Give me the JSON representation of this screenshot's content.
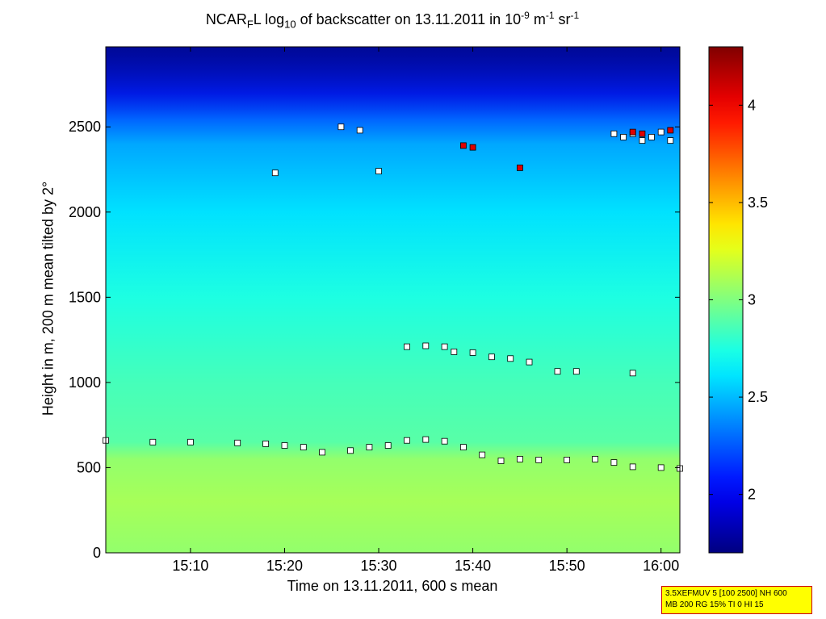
{
  "title": {
    "prefix": "NCAR",
    "sub1": "F",
    "mid1": "L log",
    "sub2": "10",
    "mid2": " of backscatter on 13.11.2011 in 10",
    "sup1": "-9",
    "mid3": " m",
    "sup2": "-1",
    "mid4": " sr",
    "sup3": "-1"
  },
  "info": {
    "line1": "3.5XEFMUV 5 [100 2500] NH 600",
    "line2": "MB 200 RG 15% TI 0 HI 15"
  },
  "colors": {
    "marker_fill": "#ffffff",
    "marker_red": "#e00000",
    "marker_edge": "#000000"
  },
  "chart_data": {
    "type": "heatmap",
    "xlabel": "Time on 13.11.2011, 600 s mean",
    "ylabel": "Height in m, 200 m mean tilted by 2°",
    "xlim": [
      "15:01",
      "16:02"
    ],
    "ylim": [
      0,
      2970
    ],
    "x_ticks": [
      "15:10",
      "15:20",
      "15:30",
      "15:40",
      "15:50",
      "16:00"
    ],
    "y_ticks": [
      0,
      500,
      1000,
      1500,
      2000,
      2500
    ],
    "colorbar": {
      "range": [
        1.7,
        4.3
      ],
      "ticks": [
        2,
        2.5,
        3,
        3.5,
        4
      ],
      "colormap": "jet"
    },
    "field_profile": [
      {
        "height": 0,
        "value": 3.05
      },
      {
        "height": 300,
        "value": 3.1
      },
      {
        "height": 550,
        "value": 3.05
      },
      {
        "height": 650,
        "value": 2.9
      },
      {
        "height": 1000,
        "value": 2.85
      },
      {
        "height": 1500,
        "value": 2.75
      },
      {
        "height": 2000,
        "value": 2.6
      },
      {
        "height": 2400,
        "value": 2.45
      },
      {
        "height": 2700,
        "value": 2.1
      },
      {
        "height": 2970,
        "value": 1.85
      }
    ],
    "series": [
      {
        "points": [
          [
            "15:01",
            660
          ],
          [
            "15:06",
            650
          ],
          [
            "15:10",
            650
          ],
          [
            "15:15",
            645
          ],
          [
            "15:18",
            640
          ],
          [
            "15:20",
            630
          ],
          [
            "15:22",
            620
          ],
          [
            "15:24",
            590
          ],
          [
            "15:27",
            600
          ],
          [
            "15:29",
            620
          ],
          [
            "15:31",
            630
          ],
          [
            "15:33",
            660
          ],
          [
            "15:35",
            665
          ],
          [
            "15:37",
            655
          ],
          [
            "15:39",
            620
          ],
          [
            "15:41",
            575
          ],
          [
            "15:43",
            540
          ],
          [
            "15:45",
            550
          ],
          [
            "15:47",
            545
          ],
          [
            "15:50",
            545
          ],
          [
            "15:53",
            550
          ],
          [
            "15:55",
            530
          ],
          [
            "15:57",
            505
          ],
          [
            "16:00",
            500
          ],
          [
            "16:02",
            495
          ]
        ]
      },
      {
        "points": [
          [
            "15:33",
            1210
          ],
          [
            "15:35",
            1215
          ],
          [
            "15:37",
            1210
          ],
          [
            "15:38",
            1180
          ],
          [
            "15:40",
            1175
          ],
          [
            "15:42",
            1150
          ],
          [
            "15:44",
            1140
          ],
          [
            "15:46",
            1120
          ],
          [
            "15:49",
            1065
          ],
          [
            "15:51",
            1065
          ],
          [
            "15:57",
            1055
          ]
        ]
      },
      {
        "points": [
          [
            "15:19",
            2230
          ],
          [
            "15:26",
            2500
          ],
          [
            "15:28",
            2480
          ],
          [
            "15:30",
            2240
          ],
          [
            "15:55",
            2460
          ],
          [
            "15:56",
            2440
          ],
          [
            "15:57",
            2460
          ],
          [
            "15:58",
            2420
          ],
          [
            "15:59",
            2440
          ],
          [
            "16:00",
            2470
          ],
          [
            "16:01",
            2420
          ]
        ]
      },
      {
        "points": [
          [
            "15:39",
            2390
          ],
          [
            "15:40",
            2380
          ],
          [
            "15:45",
            2260
          ],
          [
            "15:57",
            2470
          ],
          [
            "15:58",
            2460
          ],
          [
            "16:01",
            2480
          ]
        ]
      }
    ]
  }
}
